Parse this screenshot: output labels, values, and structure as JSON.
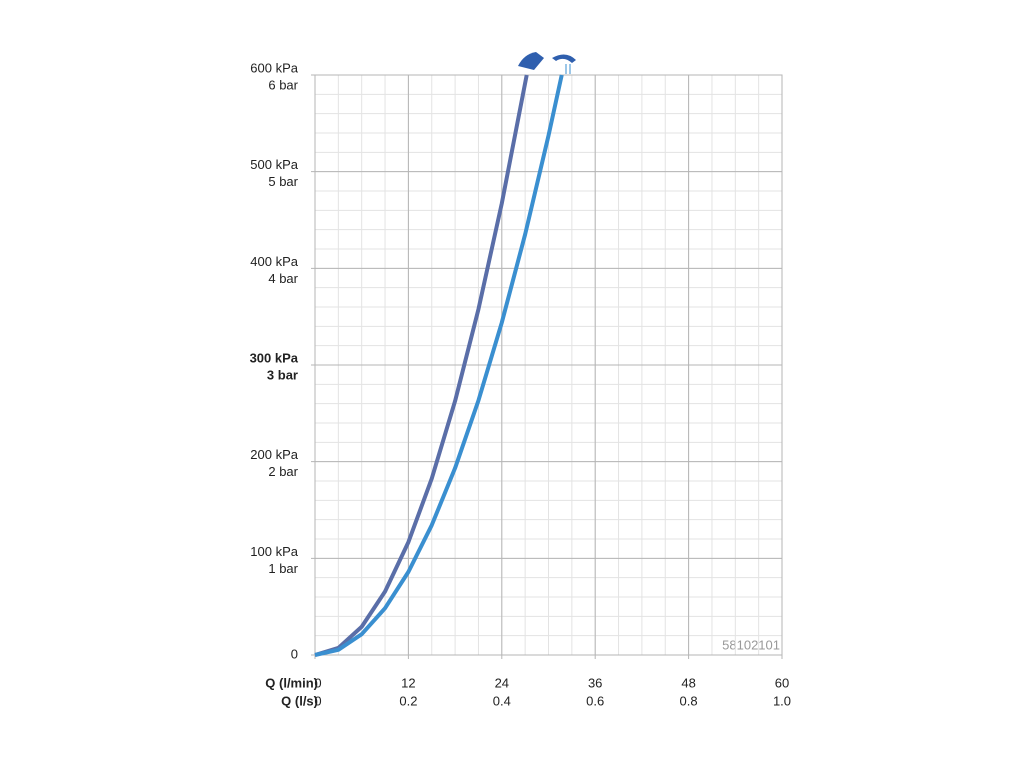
{
  "chart_data": {
    "type": "line",
    "xlabel": "Q (l/min)",
    "x2label": "Q (l/s)",
    "xlim": [
      0,
      60
    ],
    "xticks": [
      0,
      12,
      24,
      36,
      48,
      60
    ],
    "x2lim": [
      0,
      1
    ],
    "x2ticks": [
      0,
      0.2,
      0.4,
      0.6,
      0.8,
      {
        "value": 1,
        "label": "1.0"
      }
    ],
    "ylim": [
      0,
      600
    ],
    "yticks": [
      0,
      {
        "value": 100,
        "label": "100 kPa"
      },
      {
        "value": 200,
        "label": "200 kPa"
      },
      {
        "value": 300,
        "label": "300 kPa"
      },
      {
        "value": 400,
        "label": "400 kPa"
      },
      {
        "value": 500,
        "label": "500 kPa"
      },
      {
        "value": 600,
        "label": "600 kPa"
      }
    ],
    "yticks_bar": [
      {
        "value": 100,
        "label": "1 bar"
      },
      {
        "value": 200,
        "label": "2 bar"
      },
      {
        "value": 300,
        "label": "3 bar"
      },
      {
        "value": 400,
        "label": "4 bar"
      },
      {
        "value": 500,
        "label": "5 bar"
      },
      {
        "value": 600,
        "label": "6 bar"
      }
    ],
    "bold_tick": 300,
    "grid": true,
    "annotation": "58102101",
    "series": [
      {
        "color": "#5a6ea8",
        "x": [
          0,
          3,
          6,
          9,
          12,
          15,
          18,
          21,
          24,
          27.2
        ],
        "values": [
          0,
          7.3,
          29.2,
          65.7,
          116.8,
          182.5,
          262.8,
          357.7,
          467.2,
          600
        ]
      },
      {
        "color": "#3a8fd0",
        "x": [
          0,
          3,
          6,
          9,
          12,
          15,
          18,
          21,
          24,
          27,
          30,
          31.7
        ],
        "values": [
          0,
          5.4,
          21.5,
          48.4,
          86,
          134.3,
          193.4,
          263.3,
          343.9,
          435.2,
          537.3,
          600
        ]
      }
    ]
  }
}
